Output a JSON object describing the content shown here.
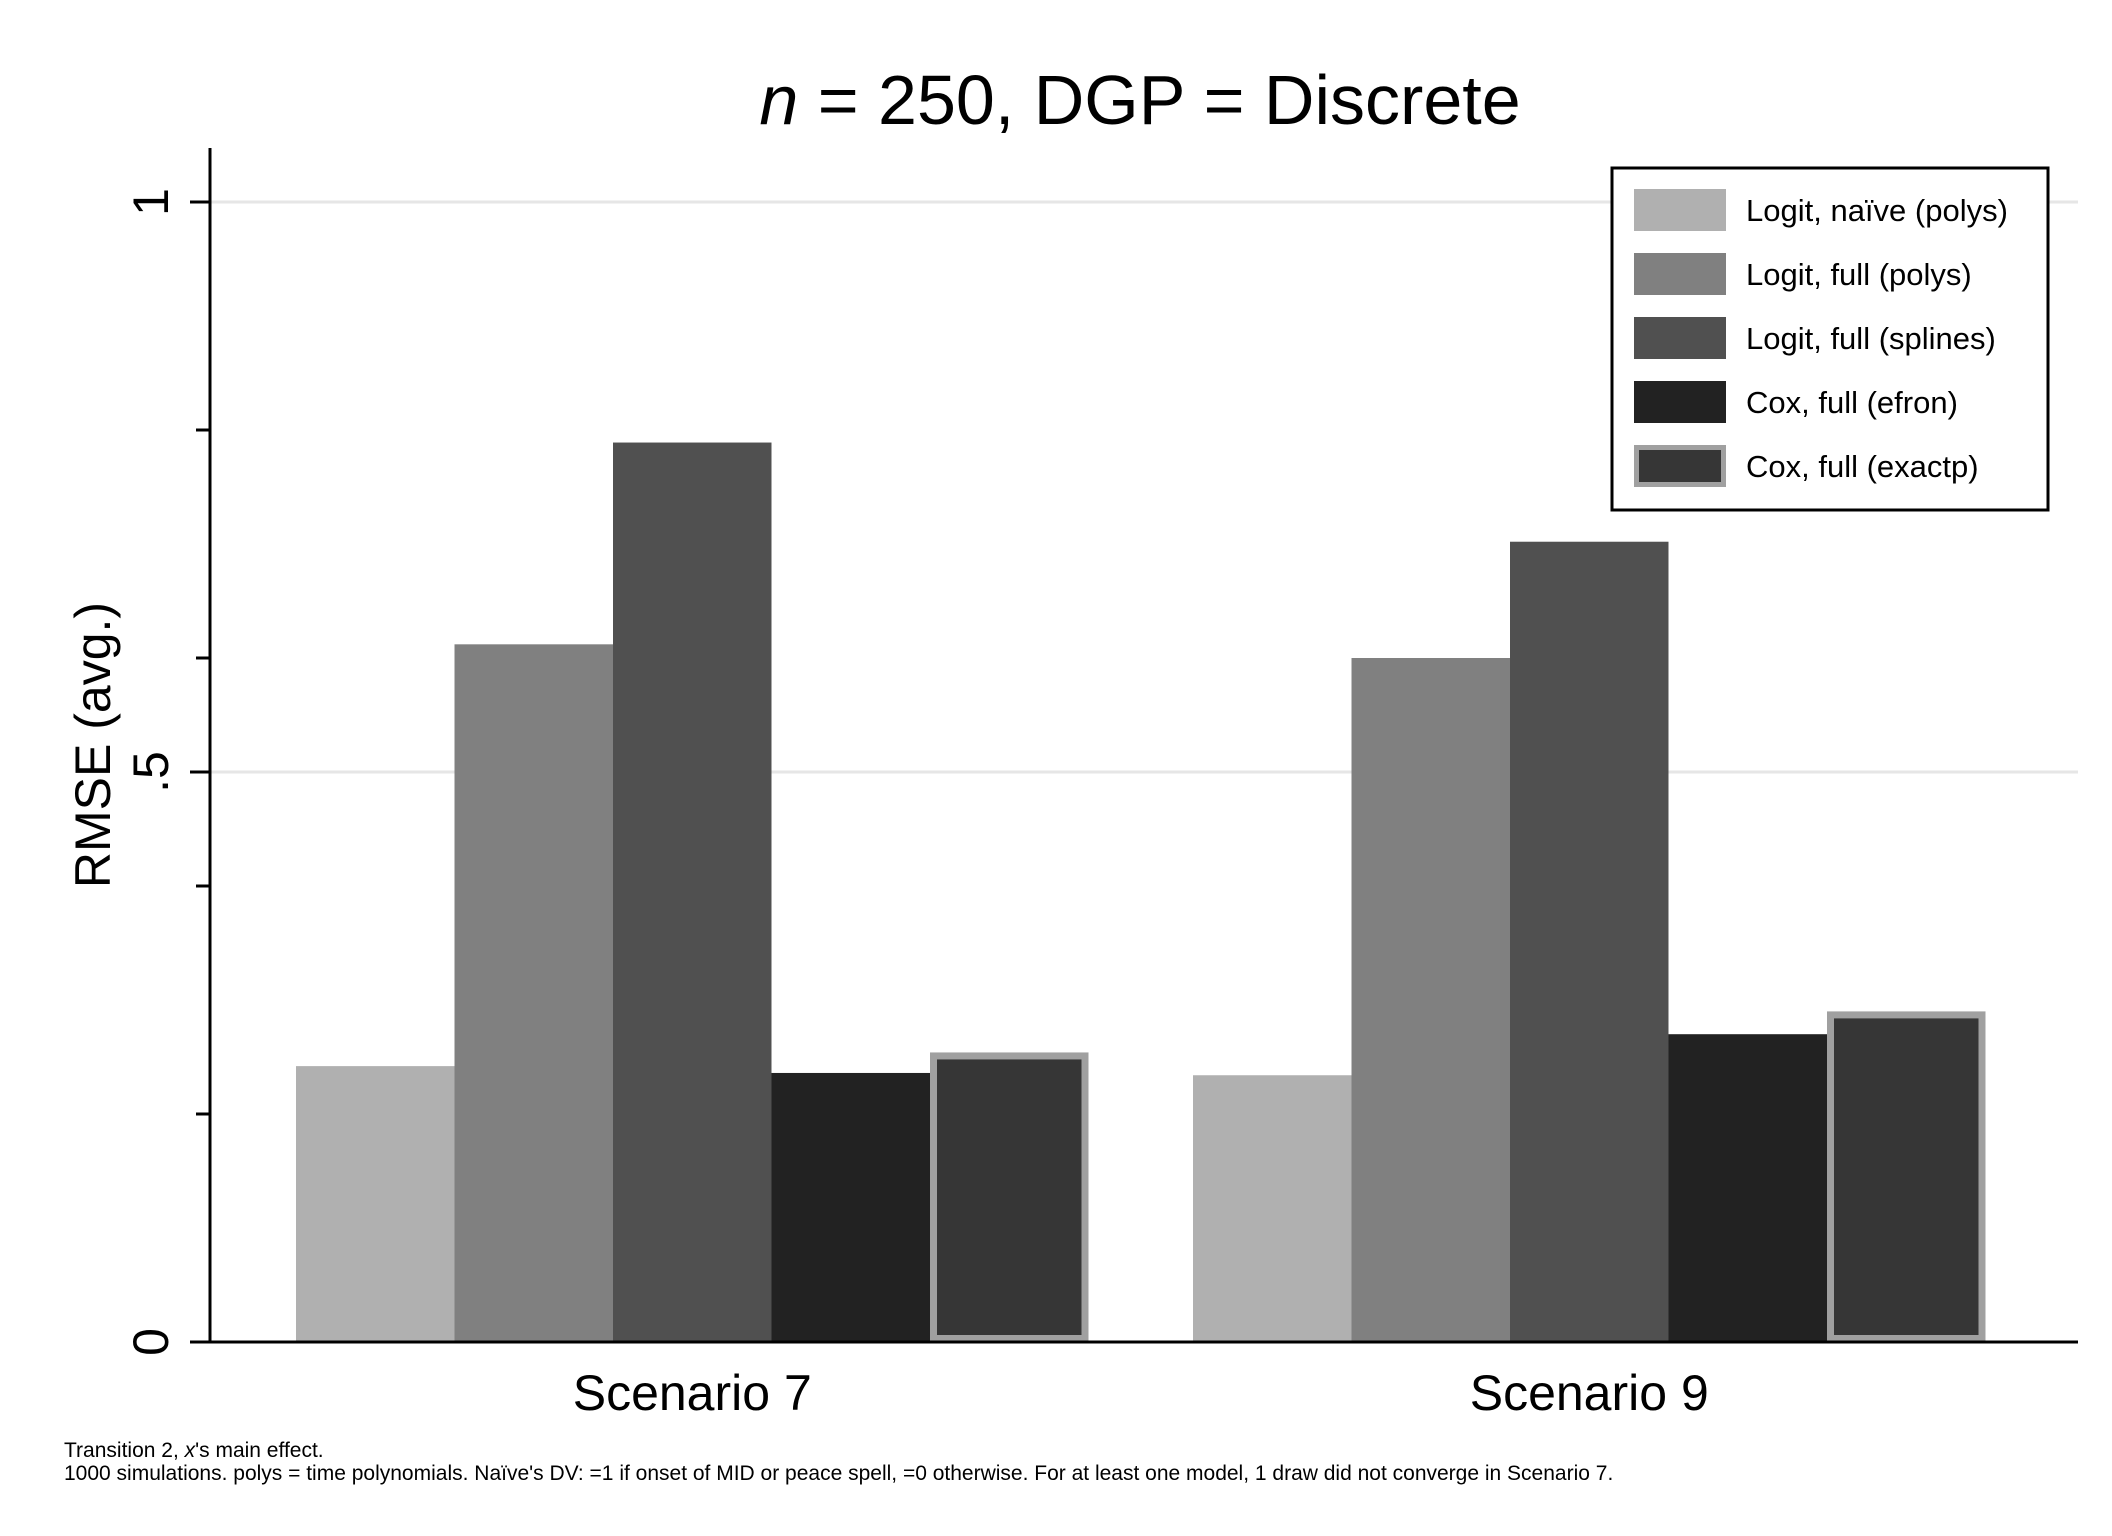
{
  "chart_data": {
    "type": "bar",
    "title_prefix": "n",
    "title_rest": " = 250, DGP = Discrete",
    "xlabel": "",
    "ylabel": "RMSE (avg.)",
    "ylim": [
      0,
      1.05
    ],
    "yticks_major": [
      {
        "value": 0,
        "label": "0"
      },
      {
        "value": 0.5,
        "label": ".5"
      },
      {
        "value": 1,
        "label": "1"
      }
    ],
    "yticks_minor": [
      0.2,
      0.4,
      0.6,
      0.8
    ],
    "gridlines": [
      0.5,
      1
    ],
    "grid": true,
    "legend_position": "top-right",
    "categories": [
      "Scenario 7",
      "Scenario 9"
    ],
    "series": [
      {
        "name": "Logit, naïve (polys)",
        "values": [
          0.242,
          0.234
        ],
        "color": "#b0b0b0",
        "outlined": false
      },
      {
        "name": "Logit, full (polys)",
        "values": [
          0.612,
          0.6
        ],
        "color": "#808080",
        "outlined": false
      },
      {
        "name": "Logit, full (splines)",
        "values": [
          0.789,
          0.702
        ],
        "color": "#505050",
        "outlined": false
      },
      {
        "name": "Cox, full (efron)",
        "values": [
          0.236,
          0.27
        ],
        "color": "#222222",
        "outlined": false
      },
      {
        "name": "Cox, full (exactp)",
        "values": [
          0.254,
          0.29
        ],
        "color": "#363636",
        "outlined": true,
        "outline_color": "#a0a0a0"
      }
    ],
    "notes": {
      "line1_pre": "Transition 2, ",
      "line1_italic": "x",
      "line1_post": "'s main effect.",
      "line2": "1000 simulations.  polys = time polynomials.  Naïve's DV: =1 if onset of MID or peace spell, =0 otherwise.  For at least one model, 1 draw did not converge in Scenario 7."
    }
  }
}
